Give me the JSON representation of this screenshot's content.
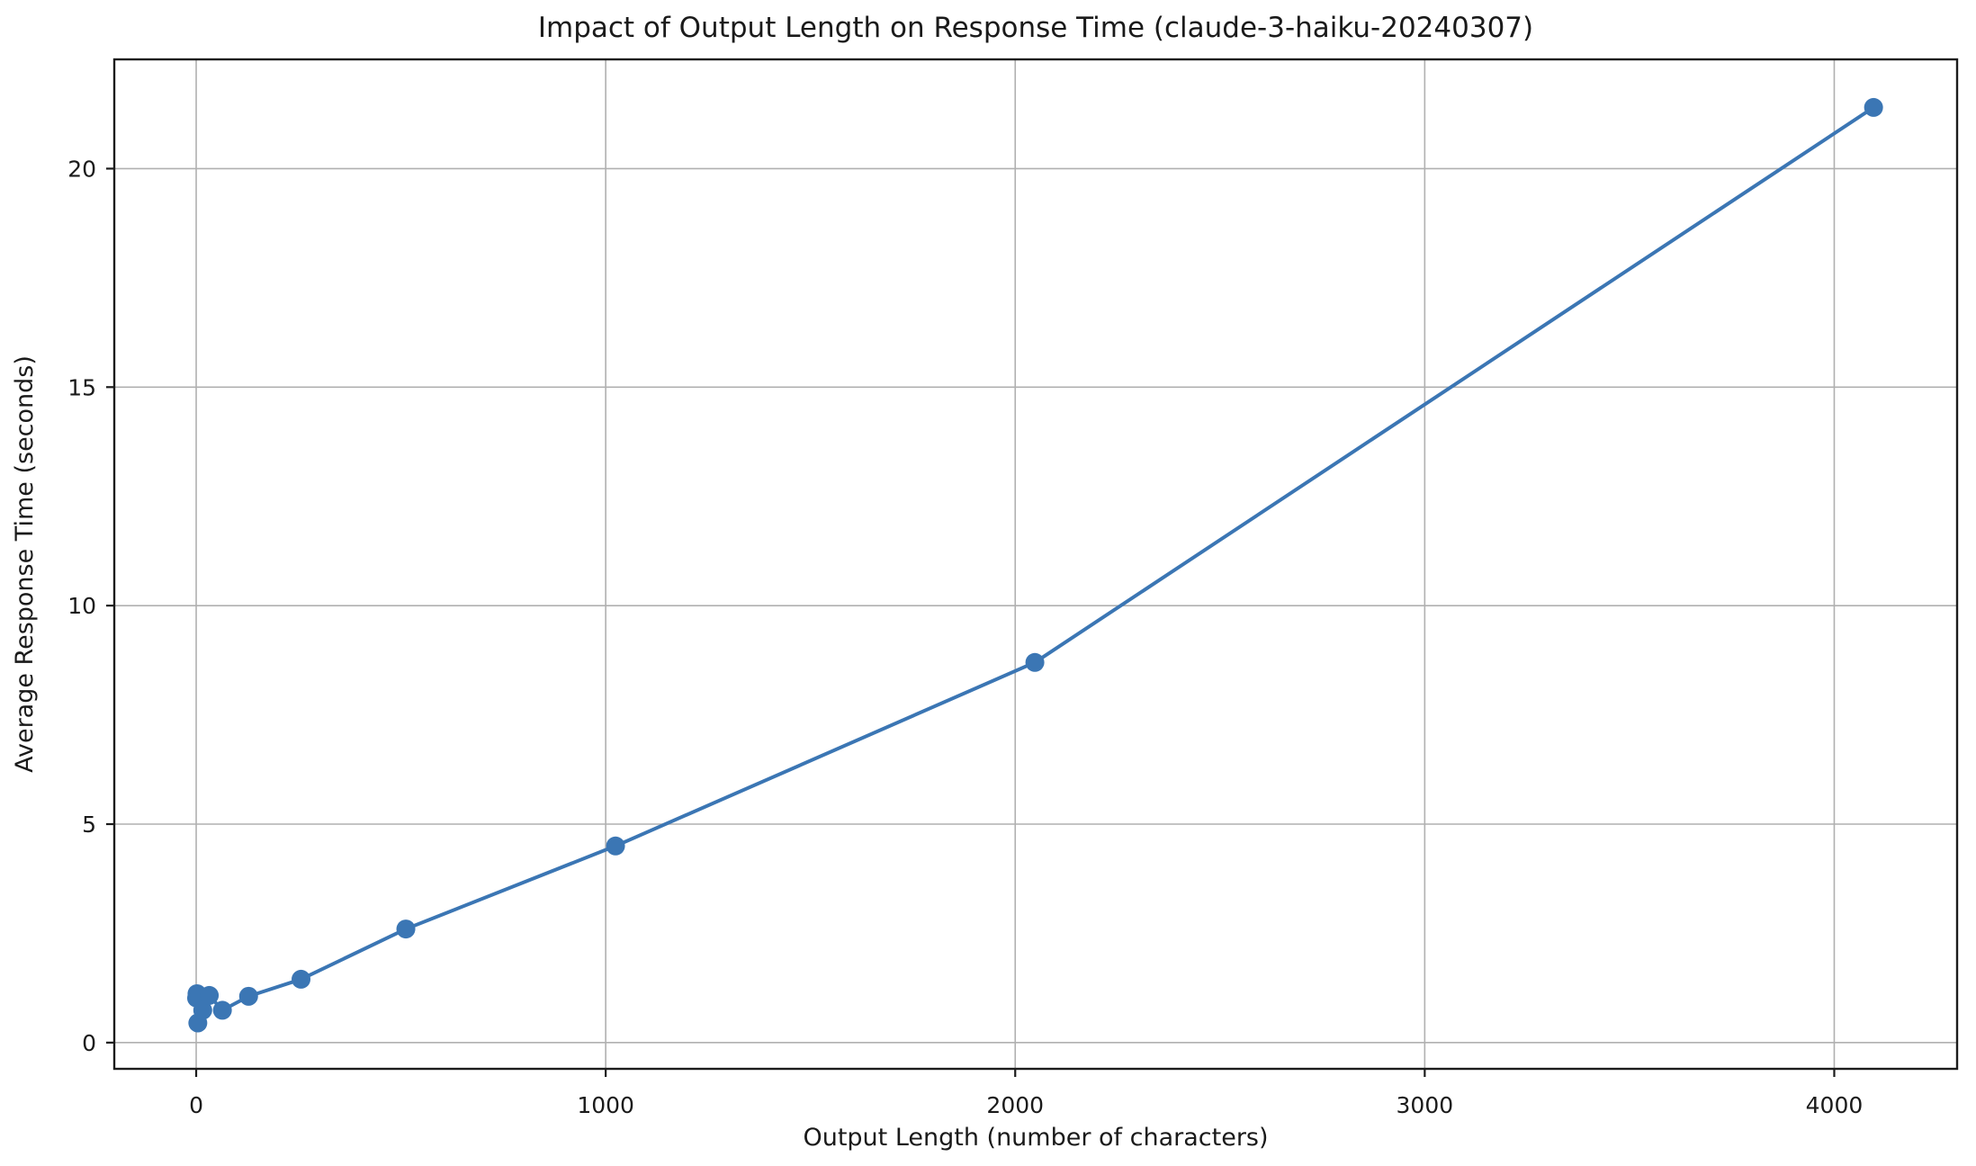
{
  "chart_data": {
    "type": "line",
    "title": "Impact of Output Length on Response Time (claude-3-haiku-20240307)",
    "xlabel": "Output Length (number of characters)",
    "ylabel": "Average Response Time (seconds)",
    "series": [
      {
        "name": "average response time",
        "x": [
          1,
          2,
          4,
          8,
          16,
          32,
          64,
          128,
          256,
          512,
          1024,
          2048,
          4096
        ],
        "y": [
          1.02,
          1.12,
          0.45,
          1.05,
          0.74,
          1.08,
          0.74,
          1.06,
          1.45,
          2.6,
          4.5,
          8.7,
          21.4
        ]
      }
    ],
    "xticks": [
      0,
      1000,
      2000,
      3000,
      4000
    ],
    "yticks": [
      0,
      5,
      10,
      15,
      20
    ],
    "xtick_labels": [
      "0",
      "1000",
      "2000",
      "3000",
      "4000"
    ],
    "ytick_labels": [
      "0",
      "5",
      "10",
      "15",
      "20"
    ],
    "xlim": [
      -200,
      4300
    ],
    "ylim": [
      -0.6,
      22.5
    ],
    "grid": true,
    "legend": "none",
    "marker": "o",
    "colors": {
      "line": "#3b76b4",
      "marker": "#3b76b4",
      "grid": "#b0b0b0",
      "spine": "#1c1c1c",
      "text": "#1a1a1a",
      "background": "#ffffff"
    }
  }
}
